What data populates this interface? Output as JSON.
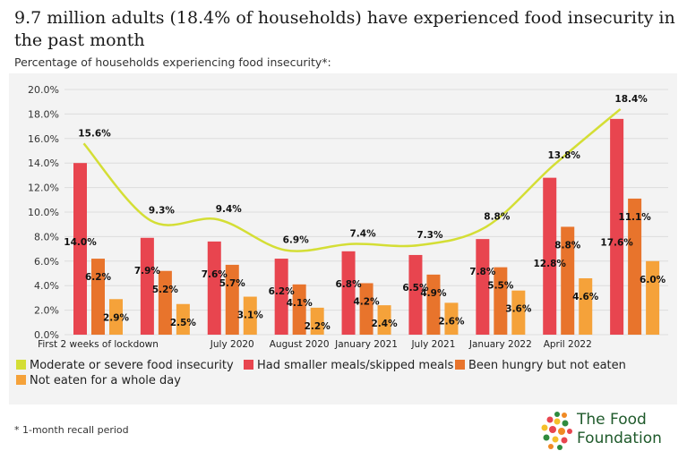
{
  "title": "9.7 million adults (18.4% of households) have experienced food insecurity in the past month",
  "subtitle": "Percentage of households experiencing food insecurity*:",
  "footnote": "* 1-month recall period",
  "logo": {
    "line1": "The Food",
    "line2": "Foundation"
  },
  "colors": {
    "line": "#d4de35",
    "smaller_meals": "#e8454f",
    "hungry": "#e8742c",
    "whole_day": "#f5a23a",
    "background": "#f3f3f3",
    "logo_text": "#1f5a2b"
  },
  "chart_data": {
    "type": "bar",
    "categories": [
      "First 2 weeks of lockdown",
      "",
      "July 2020",
      "August 2020",
      "January 2021",
      "July 2021",
      "January 2022",
      "April 2022",
      ""
    ],
    "ylim": [
      0,
      20
    ],
    "yticks": [
      "0.0%",
      "2.0%",
      "4.0%",
      "6.0%",
      "8.0%",
      "10.0%",
      "12.0%",
      "14.0%",
      "16.0%",
      "18.0%",
      "20.0%"
    ],
    "grid": true,
    "legend_position": "bottom",
    "line_series": {
      "name": "Moderate or severe food insecurity",
      "values": [
        15.6,
        9.3,
        9.4,
        6.9,
        7.4,
        7.3,
        8.8,
        13.8,
        18.4
      ],
      "labels": [
        "15.6%",
        "9.3%",
        "9.4%",
        "6.9%",
        "7.4%",
        "7.3%",
        "8.8%",
        "13.8%",
        "18.4%"
      ]
    },
    "series": [
      {
        "name": "Had smaller meals/skipped meals",
        "values": [
          14.0,
          7.9,
          7.6,
          6.2,
          6.8,
          6.5,
          7.8,
          12.8,
          17.6
        ],
        "labels": [
          "14.0%",
          "7.9%",
          "7.6%",
          "6.2%",
          "6.8%",
          "6.5%",
          "7.8%",
          "12.8%",
          "17.6%"
        ]
      },
      {
        "name": "Been hungry but not eaten",
        "values": [
          6.2,
          5.2,
          5.7,
          4.1,
          4.2,
          4.9,
          5.5,
          8.8,
          11.1
        ],
        "labels": [
          "6.2%",
          "5.2%",
          "5.7%",
          "4.1%",
          "4.2%",
          "4.9%",
          "5.5%",
          "8.8%",
          "11.1%"
        ]
      },
      {
        "name": "Not eaten for a whole day",
        "values": [
          2.9,
          2.5,
          3.1,
          2.2,
          2.4,
          2.6,
          3.6,
          4.6,
          6.0
        ],
        "labels": [
          "2.9%",
          "2.5%",
          "3.1%",
          "2.2%",
          "2.4%",
          "2.6%",
          "3.6%",
          "4.6%",
          "6.0%"
        ]
      }
    ]
  }
}
